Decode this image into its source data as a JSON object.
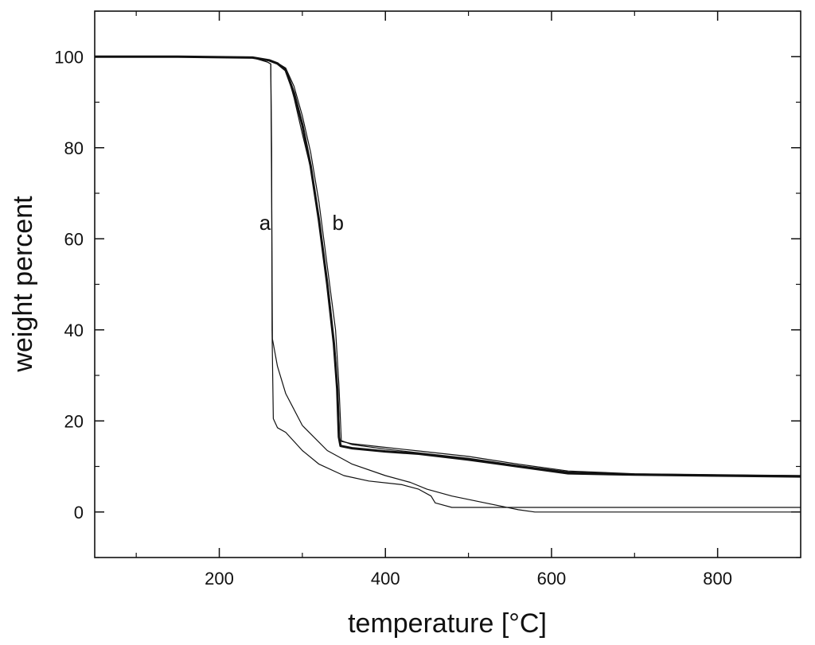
{
  "chart_data": {
    "type": "line",
    "title": "",
    "xlabel": "temperature [°C]",
    "ylabel": "weight percent",
    "xlim": [
      50,
      900
    ],
    "ylim": [
      -10,
      110
    ],
    "xticks": [
      200,
      400,
      600,
      800
    ],
    "yticks": [
      0,
      20,
      40,
      60,
      80,
      100
    ],
    "grid": false,
    "legend": "none",
    "annotations": [
      {
        "text": "a",
        "x": 255,
        "y": 62
      },
      {
        "text": "b",
        "x": 343,
        "y": 62
      }
    ],
    "series": [
      {
        "group": "a",
        "weight": "thin",
        "x": [
          50,
          150,
          240,
          258,
          262,
          263,
          263.5,
          265,
          270,
          280,
          290,
          300,
          320,
          350,
          380,
          420,
          440,
          455,
          460,
          480,
          520,
          580,
          700,
          800,
          900
        ],
        "y": [
          100,
          100,
          99.8,
          98.8,
          98.4,
          80,
          40,
          20.5,
          18.5,
          17.5,
          15.5,
          13.5,
          10.5,
          8,
          6.8,
          6.0,
          5.0,
          3.5,
          2.0,
          1.0,
          1.0,
          1.0,
          1.0,
          1.0,
          1.0
        ]
      },
      {
        "group": "a",
        "weight": "thin",
        "x": [
          50,
          150,
          240,
          258,
          262,
          263,
          264,
          270,
          280,
          300,
          330,
          360,
          400,
          430,
          450,
          480,
          520,
          560,
          580,
          700,
          800,
          900
        ],
        "y": [
          100,
          100,
          99.8,
          98.8,
          98.4,
          70,
          38,
          32,
          26,
          19,
          13.5,
          10.5,
          8,
          6.5,
          5,
          3.5,
          2,
          0.5,
          0,
          0,
          0,
          0
        ]
      },
      {
        "group": "b",
        "weight": "thick",
        "x": [
          50,
          150,
          240,
          260,
          270,
          280,
          290,
          300,
          310,
          320,
          330,
          338,
          342,
          344,
          346,
          360,
          400,
          440,
          500,
          560,
          620,
          700,
          800,
          900
        ],
        "y": [
          100,
          100,
          99.8,
          99.2,
          98.5,
          97,
          92,
          85,
          76,
          64,
          50,
          37,
          27,
          16.5,
          14.5,
          14,
          13.3,
          12.8,
          11.5,
          10,
          8.5,
          8.2,
          8.0,
          7.8
        ]
      },
      {
        "group": "b",
        "weight": "thin",
        "x": [
          50,
          150,
          240,
          260,
          270,
          280,
          290,
          300,
          310,
          320,
          330,
          340,
          344,
          347,
          360,
          400,
          440,
          500,
          560,
          620,
          700,
          800,
          900
        ],
        "y": [
          100,
          100,
          99.8,
          99.2,
          98.6,
          97.5,
          93.5,
          87,
          79,
          68,
          54,
          40,
          28,
          15.5,
          15,
          14.2,
          13.4,
          12.2,
          10.5,
          9,
          8.4,
          8.2,
          8.0
        ]
      },
      {
        "group": "b",
        "weight": "thin",
        "x": [
          50,
          150,
          240,
          260,
          270,
          280,
          290,
          300,
          312,
          322,
          332,
          340,
          343,
          345,
          360,
          400,
          440,
          500,
          560,
          620,
          700,
          800,
          900
        ],
        "y": [
          100,
          100,
          99.8,
          99.2,
          98.6,
          97.5,
          91,
          83,
          74,
          62,
          48,
          34,
          25,
          15.8,
          14.8,
          13.8,
          13,
          11.8,
          10.2,
          8.8,
          8.3,
          8.1,
          8.0
        ]
      }
    ]
  }
}
